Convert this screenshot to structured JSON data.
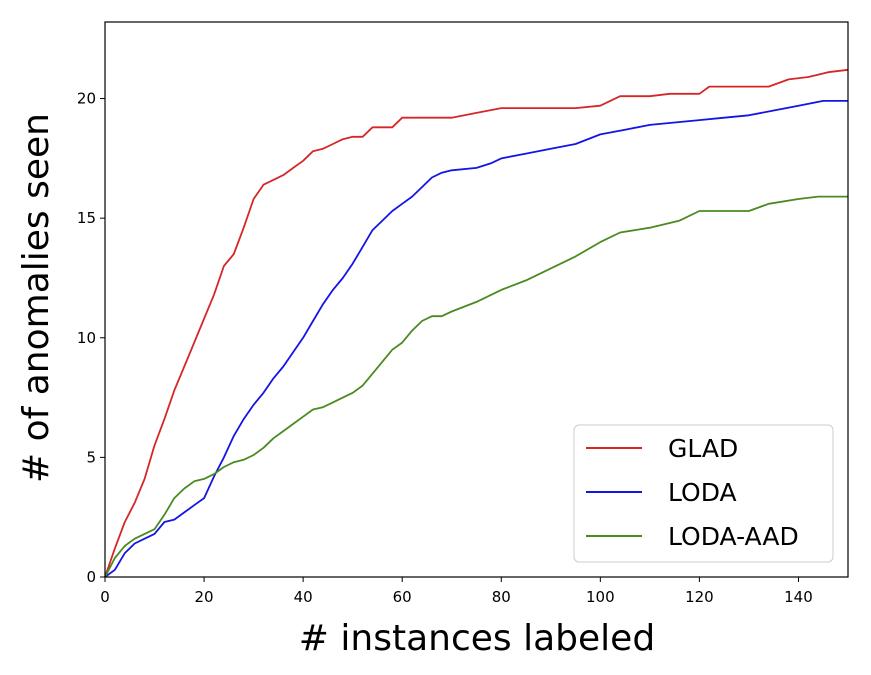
{
  "chart_data": {
    "type": "line",
    "title": "",
    "xlabel": "# instances labeled",
    "ylabel": "# of anomalies seen",
    "xlim": [
      0,
      150
    ],
    "ylim": [
      0,
      23.2
    ],
    "xticks": [
      0,
      20,
      40,
      60,
      80,
      100,
      120,
      140
    ],
    "yticks": [
      0,
      5,
      10,
      15,
      20
    ],
    "legend_position": "bottom-right",
    "series": [
      {
        "name": "GLAD",
        "color": "#d62728",
        "x": [
          0,
          2,
          4,
          6,
          8,
          10,
          12,
          14,
          16,
          18,
          20,
          22,
          24,
          26,
          28,
          30,
          32,
          34,
          36,
          38,
          40,
          42,
          44,
          46,
          48,
          50,
          52,
          54,
          56,
          58,
          60,
          65,
          70,
          75,
          80,
          85,
          90,
          95,
          100,
          104,
          110,
          114,
          120,
          122,
          128,
          134,
          138,
          142,
          146,
          150
        ],
        "y": [
          0,
          1.2,
          2.3,
          3.1,
          4.1,
          5.5,
          6.6,
          7.8,
          8.8,
          9.8,
          10.8,
          11.8,
          13.0,
          13.5,
          14.6,
          15.8,
          16.4,
          16.6,
          16.8,
          17.1,
          17.4,
          17.8,
          17.9,
          18.1,
          18.3,
          18.4,
          18.4,
          18.8,
          18.8,
          18.8,
          19.2,
          19.2,
          19.2,
          19.4,
          19.6,
          19.6,
          19.6,
          19.6,
          19.7,
          20.1,
          20.1,
          20.2,
          20.2,
          20.5,
          20.5,
          20.5,
          20.8,
          20.9,
          21.1,
          21.2
        ]
      },
      {
        "name": "LODA",
        "color": "#1414e6",
        "x": [
          0,
          2,
          4,
          6,
          8,
          10,
          12,
          14,
          16,
          18,
          20,
          22,
          24,
          26,
          28,
          30,
          32,
          34,
          36,
          38,
          40,
          42,
          44,
          46,
          48,
          50,
          52,
          54,
          56,
          58,
          60,
          62,
          64,
          66,
          68,
          70,
          75,
          78,
          80,
          85,
          90,
          95,
          100,
          105,
          110,
          115,
          120,
          125,
          130,
          135,
          140,
          145,
          150
        ],
        "y": [
          0,
          0.3,
          1.0,
          1.4,
          1.6,
          1.8,
          2.3,
          2.4,
          2.7,
          3.0,
          3.3,
          4.2,
          5.0,
          5.9,
          6.6,
          7.2,
          7.7,
          8.3,
          8.8,
          9.4,
          10.0,
          10.7,
          11.4,
          12.0,
          12.5,
          13.1,
          13.8,
          14.5,
          14.9,
          15.3,
          15.6,
          15.9,
          16.3,
          16.7,
          16.9,
          17.0,
          17.1,
          17.3,
          17.5,
          17.7,
          17.9,
          18.1,
          18.5,
          18.7,
          18.9,
          19.0,
          19.1,
          19.2,
          19.3,
          19.5,
          19.7,
          19.9,
          19.9
        ]
      },
      {
        "name": "LODA-AAD",
        "color": "#4b8a20",
        "x": [
          0,
          2,
          4,
          6,
          8,
          10,
          12,
          14,
          16,
          18,
          20,
          22,
          24,
          26,
          28,
          30,
          32,
          34,
          36,
          38,
          40,
          42,
          44,
          46,
          48,
          50,
          52,
          54,
          56,
          58,
          60,
          62,
          64,
          66,
          68,
          70,
          75,
          80,
          85,
          90,
          95,
          100,
          104,
          110,
          116,
          120,
          124,
          130,
          134,
          140,
          144,
          150
        ],
        "y": [
          0,
          0.8,
          1.3,
          1.6,
          1.8,
          2.0,
          2.6,
          3.3,
          3.7,
          4.0,
          4.1,
          4.3,
          4.6,
          4.8,
          4.9,
          5.1,
          5.4,
          5.8,
          6.1,
          6.4,
          6.7,
          7.0,
          7.1,
          7.3,
          7.5,
          7.7,
          8.0,
          8.5,
          9.0,
          9.5,
          9.8,
          10.3,
          10.7,
          10.9,
          10.9,
          11.1,
          11.5,
          12.0,
          12.4,
          12.9,
          13.4,
          14.0,
          14.4,
          14.6,
          14.9,
          15.3,
          15.3,
          15.3,
          15.6,
          15.8,
          15.9,
          15.9
        ]
      }
    ]
  }
}
